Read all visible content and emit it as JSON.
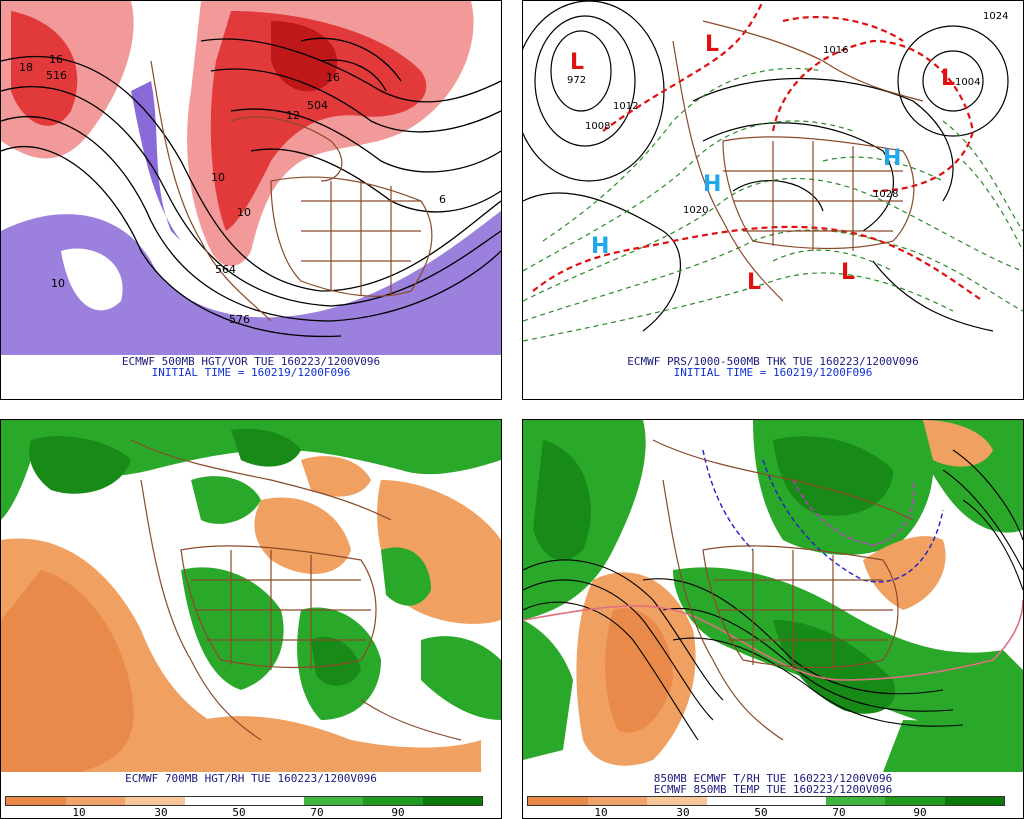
{
  "panels": [
    {
      "title": "ECMWF 500MB HGT/VOR TUE 160223/1200V096",
      "subtitle": "INITIAL TIME = 160219/1200F096",
      "labels": [
        "516",
        "504",
        "564",
        "576",
        "10",
        "10",
        "10",
        "12",
        "16",
        "16",
        "18",
        "6"
      ]
    },
    {
      "title": "ECMWF PRS/1000-500MB THK TUE 160223/1200V096",
      "subtitle": "INITIAL TIME = 160219/1200F096",
      "centers": [
        "L",
        "L",
        "L",
        "L",
        "L",
        "H",
        "H",
        "H"
      ],
      "labels": [
        "972",
        "1004",
        "1012",
        "1020",
        "1028",
        "1008",
        "1016",
        "1024"
      ]
    },
    {
      "title": "ECMWF 700MB HGT/RH TUE 160223/1200V096",
      "subtitle": ""
    },
    {
      "title": "850MB ECMWF T/RH TUE 160223/1200V096",
      "subtitle": "ECMWF 850MB TEMP TUE 160223/1200V096"
    }
  ],
  "colorbar": {
    "ticks": [
      "10",
      "30",
      "50",
      "70",
      "90"
    ],
    "colors": [
      "#e9894a",
      "#f0a36a",
      "#f7c89c",
      "#ffffff",
      "#ffffff",
      "#3fb43f",
      "#1f9a1f",
      "#0b7a0b"
    ]
  },
  "palette": {
    "vorticity_pos": "#e23a3a",
    "vorticity_light": "#f29a9a",
    "vorticity_neg": "#8060d8",
    "rh_dry": "#f0a060",
    "rh_moist": "#2aa82a",
    "rh_very_moist": "#178a17",
    "land_lines": "#8b4a2a",
    "low_center": "#e01010",
    "high_center": "#20a8e8"
  }
}
